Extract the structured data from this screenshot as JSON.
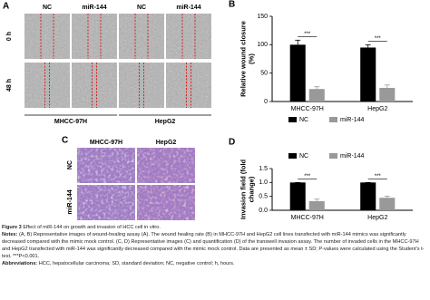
{
  "panel_a": {
    "letter": "A",
    "columns": [
      "NC",
      "miR-144",
      "NC",
      "miR-144"
    ],
    "rows": [
      "0 h",
      "48 h"
    ],
    "groups": [
      "MHCC-97H",
      "HepG2"
    ]
  },
  "panel_c": {
    "letter": "C",
    "columns": [
      "MHCC-97H",
      "HepG2"
    ],
    "rows": [
      "NC",
      "miR-144"
    ]
  },
  "chart_data": [
    {
      "type": "bar",
      "letter": "B",
      "ylabel": "Relative wound closure (%)",
      "categories": [
        "MHCC-97H",
        "HepG2"
      ],
      "series": [
        {
          "name": "NC",
          "color": "#000000",
          "values": [
            100,
            95
          ],
          "errors": [
            8,
            5
          ]
        },
        {
          "name": "miR-144",
          "color": "#999999",
          "values": [
            22,
            24
          ],
          "errors": [
            4,
            5
          ]
        }
      ],
      "significance": [
        "***",
        "***"
      ],
      "ylim": [
        0,
        150
      ],
      "yticks": [
        0,
        50,
        100,
        150
      ],
      "legend": "bottom"
    },
    {
      "type": "bar",
      "letter": "D",
      "ylabel": "Invasion field (fold change)",
      "categories": [
        "MHCC-97H",
        "HepG2"
      ],
      "series": [
        {
          "name": "NC",
          "color": "#000000",
          "values": [
            1,
            1
          ],
          "errors": [
            0,
            0
          ]
        },
        {
          "name": "miR-144",
          "color": "#999999",
          "values": [
            0.33,
            0.45
          ],
          "errors": [
            0.07,
            0.06
          ]
        }
      ],
      "significance": [
        "***",
        "***"
      ],
      "ylim": [
        0,
        1.5
      ],
      "yticks": [
        {
          "value": 0,
          "label": "0.0"
        },
        {
          "value": 0.5,
          "label": "0.5"
        },
        {
          "value": 1,
          "label": "1.0"
        },
        {
          "value": 1.5,
          "label": "1.5"
        }
      ],
      "legend": "top"
    }
  ],
  "caption": {
    "figure_label": "Figure 3",
    "figure_title": "Effect of miR-144 on growth and invasion of HCC cell in vitro.",
    "notes_label": "Notes:",
    "notes": "(A, B) Representative images of wound-healing assay (A). The wound healing rate (B) in MHCC-97H and HepG2 cell lines transfected with miR-144 mimics was significantly decreased compared with the mimic mock control. (C, D) Representative images (C) and quantification (D) of the transwell invasion assay. The number of invaded cells in the MHCC-97H and HepG2 transfected with miR-144 was significantly decreased compared with the mimic mock control. Data are presented as mean ± SD; P-values were calculated using the Student's t-test. ***P<0.001.",
    "abbreviations_label": "Abbreviations:",
    "abbreviations": "HCC, hepatocellular carcinoma; SD, standard deviation; NC, negative control; h, hours."
  }
}
